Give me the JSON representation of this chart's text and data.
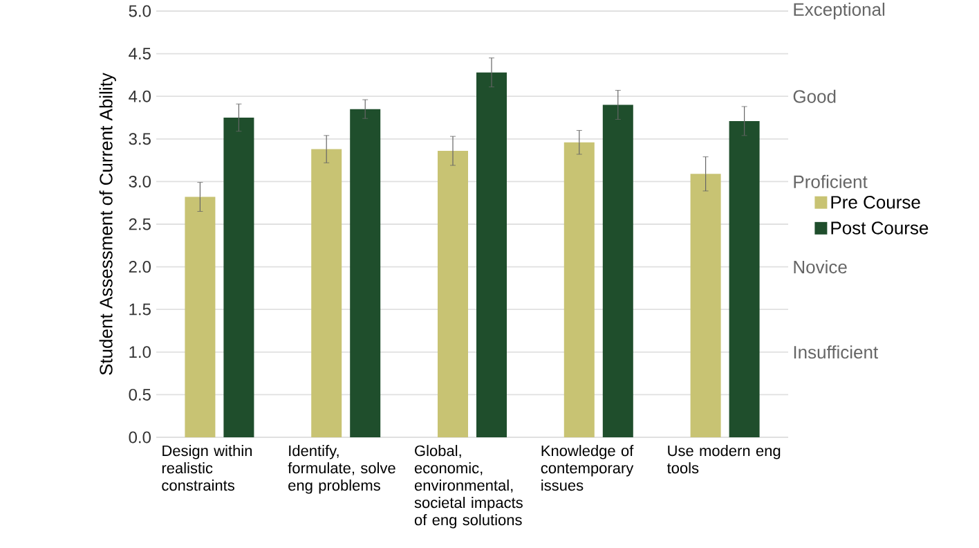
{
  "chart_data": {
    "type": "bar",
    "ylabel": "Student Assessment of Current Ability",
    "categories": [
      "Design within realistic constraints",
      "Identify, formulate, solve eng problems",
      "Global, economic, environmental, societal impacts of eng solutions",
      "Knowledge of contemporary issues",
      "Use modern eng tools"
    ],
    "series": [
      {
        "name": "Pre Course",
        "color": "#c8c373",
        "values": [
          2.82,
          3.38,
          3.36,
          3.46,
          3.09
        ],
        "errors": [
          0.17,
          0.16,
          0.17,
          0.14,
          0.2
        ]
      },
      {
        "name": "Post Course",
        "color": "#1f4e2c",
        "values": [
          3.75,
          3.85,
          4.28,
          3.9,
          3.71
        ],
        "errors": [
          0.16,
          0.11,
          0.17,
          0.17,
          0.17
        ]
      }
    ],
    "ylim": [
      0,
      5
    ],
    "yticks": [
      {
        "value": 0,
        "label": "0.0"
      },
      {
        "value": 0.5,
        "label": "0.5"
      },
      {
        "value": 1,
        "label": "1.0"
      },
      {
        "value": 1.5,
        "label": "1.5"
      },
      {
        "value": 2,
        "label": "2.0"
      },
      {
        "value": 2.5,
        "label": "2.5"
      },
      {
        "value": 3,
        "label": "3.0"
      },
      {
        "value": 3.5,
        "label": "3.5"
      },
      {
        "value": 4,
        "label": "4.0"
      },
      {
        "value": 4.5,
        "label": "4.5"
      },
      {
        "value": 5,
        "label": "5.0"
      }
    ],
    "annotations": [
      "Exceptional",
      "Good",
      "Proficient",
      "Novice",
      "Insufficient"
    ],
    "grid": "y",
    "legend": "right"
  }
}
